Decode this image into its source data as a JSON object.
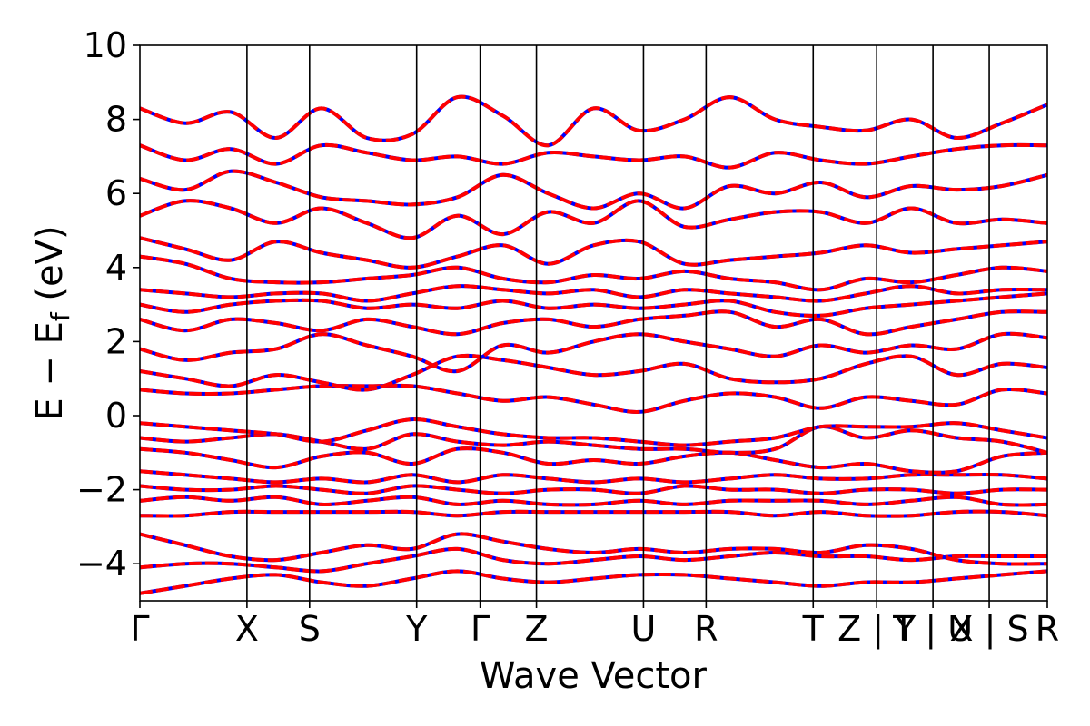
{
  "chart_data": {
    "type": "line",
    "title": "",
    "xlabel": "Wave Vector",
    "ylabel": "E − E",
    "ylabel_sub": "f",
    "ylabel_unit": " (eV)",
    "ylim": [
      -5,
      10
    ],
    "yticks": [
      -4,
      -2,
      0,
      2,
      4,
      6,
      8,
      10
    ],
    "ytick_labels": [
      "−4",
      "−2",
      "0",
      "2",
      "4",
      "6",
      "8",
      "10"
    ],
    "grid": false,
    "legend": "none",
    "kpath": [
      {
        "pos": 0.0,
        "label": "Γ"
      },
      {
        "pos": 0.118,
        "label": "X"
      },
      {
        "pos": 0.187,
        "label": "S"
      },
      {
        "pos": 0.305,
        "label": "Y"
      },
      {
        "pos": 0.375,
        "label": "Γ"
      },
      {
        "pos": 0.437,
        "label": "Z"
      },
      {
        "pos": 0.555,
        "label": "U"
      },
      {
        "pos": 0.624,
        "label": "R"
      },
      {
        "pos": 0.742,
        "label": "T"
      },
      {
        "pos": 0.812,
        "label": "Z | Y"
      },
      {
        "pos": 0.874,
        "label": "T | U"
      },
      {
        "pos": 0.936,
        "label": "X | S"
      },
      {
        "pos": 1.0,
        "label": "R"
      }
    ],
    "series_styles": [
      {
        "name": "",
        "color": "#0000ff",
        "style": "solid"
      },
      {
        "name": "",
        "color": "#ff0000",
        "style": "dashed"
      }
    ],
    "series": [
      {
        "name": "",
        "x": [
          0.0,
          0.05,
          0.1,
          0.15,
          0.2,
          0.25,
          0.3,
          0.35,
          0.4,
          0.45,
          0.5,
          0.55,
          0.6,
          0.65,
          0.7,
          0.75,
          0.8,
          0.85,
          0.9,
          0.95,
          1.0
        ],
        "values": [
          -4.8,
          -4.6,
          -4.4,
          -4.3,
          -4.5,
          -4.6,
          -4.4,
          -4.2,
          -4.4,
          -4.5,
          -4.4,
          -4.3,
          -4.3,
          -4.4,
          -4.5,
          -4.6,
          -4.5,
          -4.5,
          -4.4,
          -4.3,
          -4.2
        ]
      },
      {
        "name": "",
        "x": [
          0.0,
          0.05,
          0.1,
          0.15,
          0.2,
          0.25,
          0.3,
          0.35,
          0.4,
          0.45,
          0.5,
          0.55,
          0.6,
          0.65,
          0.7,
          0.75,
          0.8,
          0.85,
          0.9,
          0.95,
          1.0
        ],
        "values": [
          -4.1,
          -4.0,
          -4.0,
          -4.1,
          -4.2,
          -4.0,
          -3.8,
          -3.6,
          -3.9,
          -4.0,
          -3.9,
          -3.8,
          -3.9,
          -3.8,
          -3.7,
          -3.8,
          -3.8,
          -3.9,
          -3.8,
          -3.8,
          -3.8
        ]
      },
      {
        "name": "",
        "x": [
          0.0,
          0.05,
          0.1,
          0.15,
          0.2,
          0.25,
          0.3,
          0.35,
          0.4,
          0.45,
          0.5,
          0.55,
          0.6,
          0.65,
          0.7,
          0.75,
          0.8,
          0.85,
          0.9,
          0.95,
          1.0
        ],
        "values": [
          -3.2,
          -3.5,
          -3.8,
          -3.9,
          -3.7,
          -3.5,
          -3.6,
          -3.2,
          -3.4,
          -3.6,
          -3.7,
          -3.6,
          -3.7,
          -3.6,
          -3.6,
          -3.7,
          -3.5,
          -3.6,
          -3.9,
          -4.0,
          -4.0
        ]
      },
      {
        "name": "",
        "x": [
          0.0,
          0.05,
          0.1,
          0.15,
          0.2,
          0.25,
          0.3,
          0.35,
          0.4,
          0.45,
          0.5,
          0.55,
          0.6,
          0.65,
          0.7,
          0.75,
          0.8,
          0.85,
          0.9,
          0.95,
          1.0
        ],
        "values": [
          -2.7,
          -2.7,
          -2.6,
          -2.6,
          -2.6,
          -2.6,
          -2.6,
          -2.7,
          -2.6,
          -2.6,
          -2.6,
          -2.6,
          -2.6,
          -2.6,
          -2.7,
          -2.6,
          -2.7,
          -2.7,
          -2.6,
          -2.6,
          -2.7
        ]
      },
      {
        "name": "",
        "x": [
          0.0,
          0.05,
          0.1,
          0.15,
          0.2,
          0.25,
          0.3,
          0.35,
          0.4,
          0.45,
          0.5,
          0.55,
          0.6,
          0.65,
          0.7,
          0.75,
          0.8,
          0.85,
          0.9,
          0.95,
          1.0
        ],
        "values": [
          -2.3,
          -2.2,
          -2.3,
          -2.2,
          -2.4,
          -2.3,
          -2.2,
          -2.4,
          -2.3,
          -2.4,
          -2.4,
          -2.3,
          -2.4,
          -2.3,
          -2.3,
          -2.3,
          -2.4,
          -2.3,
          -2.2,
          -2.4,
          -2.4
        ]
      },
      {
        "name": "",
        "x": [
          0.0,
          0.05,
          0.1,
          0.15,
          0.2,
          0.25,
          0.3,
          0.35,
          0.4,
          0.45,
          0.5,
          0.55,
          0.6,
          0.65,
          0.7,
          0.75,
          0.8,
          0.85,
          0.9,
          0.95,
          1.0
        ],
        "values": [
          -1.9,
          -2.0,
          -2.0,
          -1.9,
          -2.0,
          -2.1,
          -1.9,
          -2.0,
          -2.1,
          -2.0,
          -2.0,
          -2.1,
          -1.9,
          -2.0,
          -2.0,
          -2.1,
          -2.0,
          -2.0,
          -2.1,
          -2.0,
          -2.0
        ]
      },
      {
        "name": "",
        "x": [
          0.0,
          0.05,
          0.1,
          0.15,
          0.2,
          0.25,
          0.3,
          0.35,
          0.4,
          0.45,
          0.5,
          0.55,
          0.6,
          0.65,
          0.7,
          0.75,
          0.8,
          0.85,
          0.9,
          0.95,
          1.0
        ],
        "values": [
          -1.5,
          -1.6,
          -1.7,
          -1.8,
          -1.7,
          -1.8,
          -1.6,
          -1.8,
          -1.6,
          -1.7,
          -1.8,
          -1.7,
          -1.8,
          -1.7,
          -1.6,
          -1.7,
          -1.7,
          -1.6,
          -1.6,
          -1.6,
          -1.7
        ]
      },
      {
        "name": "",
        "x": [
          0.0,
          0.05,
          0.1,
          0.15,
          0.2,
          0.25,
          0.3,
          0.35,
          0.4,
          0.45,
          0.5,
          0.55,
          0.6,
          0.65,
          0.7,
          0.75,
          0.8,
          0.85,
          0.9,
          0.95,
          1.0
        ],
        "values": [
          -0.9,
          -1.0,
          -1.2,
          -1.4,
          -1.1,
          -1.0,
          -1.3,
          -0.9,
          -1.0,
          -1.3,
          -1.2,
          -1.3,
          -1.1,
          -1.0,
          -1.2,
          -1.4,
          -1.3,
          -1.5,
          -1.5,
          -1.1,
          -1.0
        ]
      },
      {
        "name": "",
        "x": [
          0.0,
          0.05,
          0.1,
          0.15,
          0.2,
          0.25,
          0.3,
          0.35,
          0.4,
          0.45,
          0.5,
          0.55,
          0.6,
          0.65,
          0.7,
          0.75,
          0.8,
          0.85,
          0.9,
          0.95,
          1.0
        ],
        "values": [
          -0.6,
          -0.7,
          -0.6,
          -0.5,
          -0.7,
          -0.9,
          -0.5,
          -0.7,
          -0.8,
          -0.7,
          -0.8,
          -0.9,
          -0.9,
          -1.0,
          -0.9,
          -0.3,
          -0.6,
          -0.4,
          -0.6,
          -0.7,
          -1.0
        ]
      },
      {
        "name": "",
        "x": [
          0.0,
          0.05,
          0.1,
          0.15,
          0.2,
          0.25,
          0.3,
          0.35,
          0.4,
          0.45,
          0.5,
          0.55,
          0.6,
          0.65,
          0.7,
          0.75,
          0.8,
          0.85,
          0.9,
          0.95,
          1.0
        ],
        "values": [
          -0.2,
          -0.3,
          -0.4,
          -0.5,
          -0.7,
          -0.4,
          -0.1,
          -0.3,
          -0.5,
          -0.6,
          -0.6,
          -0.7,
          -0.8,
          -0.7,
          -0.6,
          -0.3,
          -0.3,
          -0.3,
          -0.2,
          -0.4,
          -0.6
        ]
      },
      {
        "name": "",
        "x": [
          0.0,
          0.05,
          0.1,
          0.15,
          0.2,
          0.25,
          0.3,
          0.35,
          0.4,
          0.45,
          0.5,
          0.55,
          0.6,
          0.65,
          0.7,
          0.75,
          0.8,
          0.85,
          0.9,
          0.95,
          1.0
        ],
        "values": [
          0.7,
          0.6,
          0.6,
          0.7,
          0.8,
          0.8,
          0.8,
          0.6,
          0.4,
          0.5,
          0.3,
          0.1,
          0.4,
          0.6,
          0.5,
          0.2,
          0.5,
          0.4,
          0.3,
          0.7,
          0.6
        ]
      },
      {
        "name": "",
        "x": [
          0.0,
          0.05,
          0.1,
          0.15,
          0.2,
          0.25,
          0.3,
          0.35,
          0.4,
          0.45,
          0.5,
          0.55,
          0.6,
          0.65,
          0.7,
          0.75,
          0.8,
          0.85,
          0.9,
          0.95,
          1.0
        ],
        "values": [
          1.2,
          1.0,
          0.8,
          1.1,
          0.9,
          0.7,
          1.1,
          1.6,
          1.5,
          1.3,
          1.1,
          1.2,
          1.4,
          1.0,
          0.9,
          1.0,
          1.4,
          1.6,
          1.1,
          1.4,
          1.3
        ]
      },
      {
        "name": "",
        "x": [
          0.0,
          0.05,
          0.1,
          0.15,
          0.2,
          0.25,
          0.3,
          0.35,
          0.4,
          0.45,
          0.5,
          0.55,
          0.6,
          0.65,
          0.7,
          0.75,
          0.8,
          0.85,
          0.9,
          0.95,
          1.0
        ],
        "values": [
          1.8,
          1.5,
          1.7,
          1.8,
          2.2,
          1.9,
          1.6,
          1.2,
          1.9,
          1.7,
          2.0,
          2.2,
          2.0,
          1.8,
          1.6,
          1.9,
          1.7,
          1.9,
          1.8,
          2.2,
          2.1
        ]
      },
      {
        "name": "",
        "x": [
          0.0,
          0.05,
          0.1,
          0.15,
          0.2,
          0.25,
          0.3,
          0.35,
          0.4,
          0.45,
          0.5,
          0.55,
          0.6,
          0.65,
          0.7,
          0.75,
          0.8,
          0.85,
          0.9,
          0.95,
          1.0
        ],
        "values": [
          2.6,
          2.3,
          2.6,
          2.5,
          2.3,
          2.6,
          2.4,
          2.2,
          2.5,
          2.6,
          2.4,
          2.6,
          2.7,
          2.8,
          2.4,
          2.6,
          2.2,
          2.4,
          2.6,
          2.8,
          2.8
        ]
      },
      {
        "name": "",
        "x": [
          0.0,
          0.05,
          0.1,
          0.15,
          0.2,
          0.25,
          0.3,
          0.35,
          0.4,
          0.45,
          0.5,
          0.55,
          0.6,
          0.65,
          0.7,
          0.75,
          0.8,
          0.85,
          0.9,
          0.95,
          1.0
        ],
        "values": [
          3.0,
          2.8,
          3.0,
          3.1,
          3.1,
          2.9,
          3.0,
          2.9,
          3.1,
          2.9,
          3.0,
          2.9,
          3.0,
          3.1,
          2.8,
          2.7,
          2.9,
          3.0,
          3.1,
          3.2,
          3.3
        ]
      },
      {
        "name": "",
        "x": [
          0.0,
          0.05,
          0.1,
          0.15,
          0.2,
          0.25,
          0.3,
          0.35,
          0.4,
          0.45,
          0.5,
          0.55,
          0.6,
          0.65,
          0.7,
          0.75,
          0.8,
          0.85,
          0.9,
          0.95,
          1.0
        ],
        "values": [
          3.4,
          3.3,
          3.2,
          3.3,
          3.3,
          3.1,
          3.3,
          3.5,
          3.4,
          3.3,
          3.4,
          3.2,
          3.4,
          3.3,
          3.2,
          3.1,
          3.3,
          3.5,
          3.3,
          3.4,
          3.4
        ]
      },
      {
        "name": "",
        "x": [
          0.0,
          0.05,
          0.1,
          0.15,
          0.2,
          0.25,
          0.3,
          0.35,
          0.4,
          0.45,
          0.5,
          0.55,
          0.6,
          0.65,
          0.7,
          0.75,
          0.8,
          0.85,
          0.9,
          0.95,
          1.0
        ],
        "values": [
          4.3,
          4.1,
          3.7,
          3.6,
          3.6,
          3.7,
          3.8,
          4.0,
          3.7,
          3.6,
          3.8,
          3.7,
          3.9,
          3.7,
          3.6,
          3.4,
          3.7,
          3.6,
          3.8,
          4.0,
          3.9
        ]
      },
      {
        "name": "",
        "x": [
          0.0,
          0.05,
          0.1,
          0.15,
          0.2,
          0.25,
          0.3,
          0.35,
          0.4,
          0.45,
          0.5,
          0.55,
          0.6,
          0.65,
          0.7,
          0.75,
          0.8,
          0.85,
          0.9,
          0.95,
          1.0
        ],
        "values": [
          4.8,
          4.5,
          4.2,
          4.7,
          4.4,
          4.2,
          4.0,
          4.3,
          4.6,
          4.1,
          4.6,
          4.7,
          4.1,
          4.2,
          4.3,
          4.4,
          4.6,
          4.4,
          4.5,
          4.6,
          4.7
        ]
      },
      {
        "name": "",
        "x": [
          0.0,
          0.05,
          0.1,
          0.15,
          0.2,
          0.25,
          0.3,
          0.35,
          0.4,
          0.45,
          0.5,
          0.55,
          0.6,
          0.65,
          0.7,
          0.75,
          0.8,
          0.85,
          0.9,
          0.95,
          1.0
        ],
        "values": [
          5.4,
          5.8,
          5.6,
          5.2,
          5.6,
          5.2,
          4.8,
          5.4,
          4.9,
          5.5,
          5.2,
          5.8,
          5.1,
          5.3,
          5.5,
          5.5,
          5.2,
          5.6,
          5.2,
          5.3,
          5.2
        ]
      },
      {
        "name": "",
        "x": [
          0.0,
          0.05,
          0.1,
          0.15,
          0.2,
          0.25,
          0.3,
          0.35,
          0.4,
          0.45,
          0.5,
          0.55,
          0.6,
          0.65,
          0.7,
          0.75,
          0.8,
          0.85,
          0.9,
          0.95,
          1.0
        ],
        "values": [
          6.4,
          6.1,
          6.6,
          6.3,
          5.9,
          5.8,
          5.7,
          5.9,
          6.5,
          6.0,
          5.6,
          6.0,
          5.6,
          6.2,
          6.0,
          6.3,
          5.9,
          6.2,
          6.1,
          6.2,
          6.5
        ]
      },
      {
        "name": "",
        "x": [
          0.0,
          0.05,
          0.1,
          0.15,
          0.2,
          0.25,
          0.3,
          0.35,
          0.4,
          0.45,
          0.5,
          0.55,
          0.6,
          0.65,
          0.7,
          0.75,
          0.8,
          0.85,
          0.9,
          0.95,
          1.0
        ],
        "values": [
          7.3,
          6.9,
          7.2,
          6.8,
          7.3,
          7.1,
          6.9,
          7.0,
          6.8,
          7.1,
          7.0,
          6.9,
          7.0,
          6.7,
          7.1,
          6.9,
          6.8,
          7.0,
          7.2,
          7.3,
          7.3
        ]
      },
      {
        "name": "",
        "x": [
          0.0,
          0.05,
          0.1,
          0.15,
          0.2,
          0.25,
          0.3,
          0.35,
          0.4,
          0.45,
          0.5,
          0.55,
          0.6,
          0.65,
          0.7,
          0.75,
          0.8,
          0.85,
          0.9,
          0.95,
          1.0
        ],
        "values": [
          8.3,
          7.9,
          8.2,
          7.5,
          8.3,
          7.5,
          7.6,
          8.6,
          8.1,
          7.3,
          8.3,
          7.7,
          8.0,
          8.6,
          8.0,
          7.8,
          7.7,
          8.0,
          7.5,
          7.9,
          8.4
        ]
      }
    ]
  }
}
